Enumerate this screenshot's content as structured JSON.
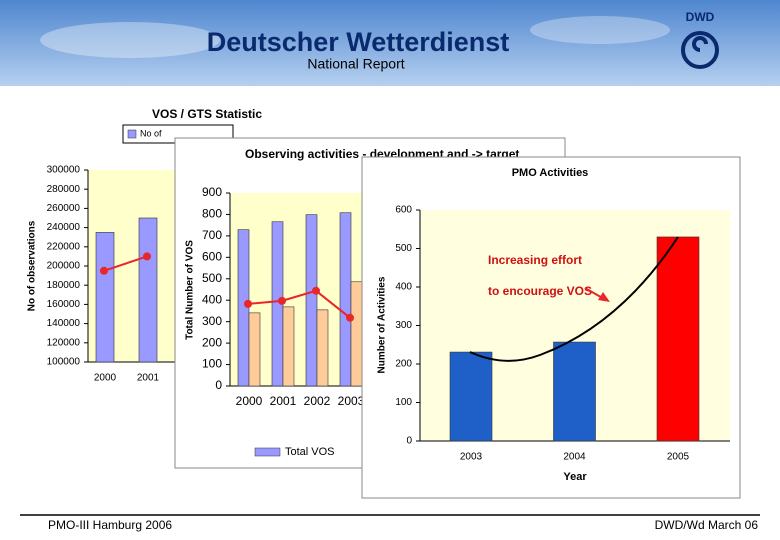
{
  "header": {
    "title": "Deutscher Wetterdienst",
    "subtitle": "National Report",
    "logo": "DWD"
  },
  "footer": {
    "left": "PMO-III Hamburg 2006",
    "right": "DWD/Wd March 06"
  },
  "chart_data": [
    {
      "type": "bar",
      "title": "VOS / GTS Statistic",
      "y_label": "No of observations",
      "categories": [
        "2000",
        "2001"
      ],
      "series": [
        {
          "name": "No of",
          "type": "bar",
          "color": "#9999ff",
          "values": [
            235000,
            250000
          ]
        },
        {
          "type": "line",
          "color": "#e8262b",
          "values": [
            195000,
            210000
          ]
        }
      ],
      "ylim": [
        100000,
        300000
      ],
      "yticks": [
        100000,
        120000,
        140000,
        160000,
        180000,
        200000,
        220000,
        240000,
        260000,
        280000,
        300000
      ],
      "grid": false
    },
    {
      "type": "bar",
      "title": "Observing activities - development and -> target",
      "y_label": "Total Number of VOS",
      "categories": [
        "2000",
        "2001",
        "2002",
        "2003"
      ],
      "series": [
        {
          "name": "Total VOS",
          "type": "bar",
          "color": "#9999ff",
          "values": [
            729,
            766,
            799,
            808
          ]
        },
        {
          "type": "bar",
          "color": "#ffcc99",
          "values": [
            341,
            369,
            355,
            486
          ]
        },
        {
          "type": "line",
          "color": "#e8262b",
          "values": [
            383,
            397,
            444,
            318
          ]
        }
      ],
      "ylim": [
        0,
        900
      ],
      "yticks": [
        0,
        100,
        200,
        300,
        400,
        500,
        600,
        700,
        800,
        900
      ],
      "grid": false
    },
    {
      "type": "bar",
      "title": "PMO Activities",
      "y_label": "Number of Activities",
      "x_label": "Year",
      "categories": [
        "2003",
        "2004",
        "2005"
      ],
      "series": [
        {
          "type": "bar",
          "colors": [
            "#1f5fc8",
            "#1f5fc8",
            "#ff0000"
          ],
          "values": [
            231,
            257,
            530
          ]
        }
      ],
      "annotations": [
        "Increasing effort",
        "to encourage VOS"
      ],
      "ylim": [
        0,
        600
      ],
      "yticks": [
        0,
        100,
        200,
        300,
        400,
        500,
        600
      ],
      "grid": false
    }
  ]
}
